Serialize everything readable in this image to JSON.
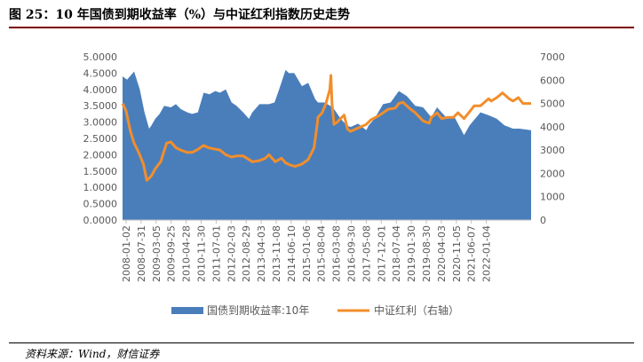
{
  "figure": {
    "title": "图 25：10 年国债到期收益率（%）与中证红利指数历史走势",
    "source": "资料来源：Wind，财信证券"
  },
  "chart_data": {
    "type": "area",
    "title": "",
    "xlabel": "",
    "ylabel": "",
    "x_tick_labels": [
      "2008-01-02",
      "2008-07-31",
      "2009-03-05",
      "2009-09-25",
      "2010-04-28",
      "2010-11-30",
      "2011-07-01",
      "2012-02-03",
      "2012-08-29",
      "2013-04-03",
      "2013-11-08",
      "2014-06-10",
      "2015-01-06",
      "2015-08-04",
      "2016-03-08",
      "2016-09-30",
      "2017-05-08",
      "2017-12-01",
      "2018-07-04",
      "2019-01-30",
      "2019-08-30",
      "2020-04-03",
      "2020-11-05",
      "2021-06-07",
      "2022-01-04"
    ],
    "y_left": {
      "min": 0,
      "max": 5,
      "tick_labels": [
        "0.0000",
        "0.5000",
        "1.0000",
        "1.5000",
        "2.0000",
        "2.5000",
        "3.0000",
        "3.5000",
        "4.0000",
        "4.5000",
        "5.0000"
      ]
    },
    "y_right": {
      "min": 0,
      "max": 7000,
      "tick_labels": [
        "0",
        "1000",
        "2000",
        "3000",
        "4000",
        "5000",
        "6000",
        "7000"
      ]
    },
    "legend_position": "bottom",
    "series": [
      {
        "name": "国债到期收益率:10年",
        "type": "area",
        "axis": "left",
        "color": "#4a7ebb",
        "x": [
          "2008-01-02",
          "2008-03-01",
          "2008-06-01",
          "2008-08-15",
          "2008-10-15",
          "2008-12-15",
          "2009-01-15",
          "2009-03-05",
          "2009-05-01",
          "2009-07-01",
          "2009-09-25",
          "2009-12-01",
          "2010-02-01",
          "2010-04-28",
          "2010-07-01",
          "2010-09-15",
          "2010-11-30",
          "2011-02-15",
          "2011-05-01",
          "2011-07-01",
          "2011-09-15",
          "2011-12-01",
          "2012-02-03",
          "2012-05-01",
          "2012-07-15",
          "2012-08-29",
          "2012-12-01",
          "2013-04-03",
          "2013-06-15",
          "2013-08-15",
          "2013-11-08",
          "2013-12-20",
          "2014-03-01",
          "2014-06-10",
          "2014-09-01",
          "2014-12-01",
          "2015-01-06",
          "2015-04-01",
          "2015-06-15",
          "2015-08-04",
          "2015-11-01",
          "2016-01-15",
          "2016-03-08",
          "2016-06-15",
          "2016-09-30",
          "2016-11-01",
          "2017-01-15",
          "2017-05-08",
          "2017-08-15",
          "2017-11-15",
          "2017-12-01",
          "2018-03-15",
          "2018-07-04",
          "2018-10-15",
          "2019-01-30",
          "2019-04-15",
          "2019-08-30",
          "2019-12-01",
          "2020-04-03",
          "2020-06-15",
          "2020-11-05",
          "2021-03-01",
          "2021-06-07",
          "2021-09-15",
          "2022-01-04",
          "2022-04-01",
          "2022-08-30"
        ],
        "values": [
          4.4,
          4.3,
          4.55,
          4.0,
          3.3,
          2.8,
          2.9,
          3.1,
          3.25,
          3.5,
          3.45,
          3.55,
          3.4,
          3.3,
          3.25,
          3.3,
          3.9,
          3.85,
          3.95,
          3.9,
          4.0,
          3.6,
          3.5,
          3.3,
          3.1,
          3.3,
          3.55,
          3.55,
          3.6,
          4.0,
          4.6,
          4.5,
          4.5,
          4.1,
          4.2,
          3.7,
          3.6,
          3.6,
          3.5,
          3.4,
          3.1,
          2.9,
          2.85,
          2.95,
          2.75,
          2.9,
          3.1,
          3.55,
          3.6,
          3.9,
          3.95,
          3.8,
          3.5,
          3.45,
          3.15,
          3.45,
          3.1,
          3.15,
          2.6,
          2.9,
          3.3,
          3.2,
          3.1,
          2.9,
          2.8,
          2.8,
          2.75
        ]
      },
      {
        "name": "中证红利（右轴）",
        "type": "line",
        "axis": "right",
        "color": "#f28e2b",
        "x": [
          "2008-01-02",
          "2008-02-15",
          "2008-04-15",
          "2008-06-01",
          "2008-08-01",
          "2008-10-01",
          "2008-11-15",
          "2009-01-15",
          "2009-03-05",
          "2009-05-15",
          "2009-08-01",
          "2009-09-25",
          "2009-12-01",
          "2010-02-01",
          "2010-04-28",
          "2010-07-01",
          "2010-09-01",
          "2010-11-30",
          "2011-02-01",
          "2011-04-15",
          "2011-07-01",
          "2011-09-15",
          "2011-12-01",
          "2012-02-03",
          "2012-05-01",
          "2012-08-29",
          "2012-12-01",
          "2013-02-15",
          "2013-04-03",
          "2013-06-25",
          "2013-09-15",
          "2013-11-08",
          "2014-01-15",
          "2014-03-15",
          "2014-06-10",
          "2014-09-01",
          "2014-11-15",
          "2014-12-31",
          "2015-01-06",
          "2015-03-01",
          "2015-04-20",
          "2015-06-10",
          "2015-06-25",
          "2015-07-08",
          "2015-08-04",
          "2015-09-15",
          "2015-12-15",
          "2016-01-28",
          "2016-03-08",
          "2016-06-15",
          "2016-09-30",
          "2016-12-01",
          "2017-03-01",
          "2017-05-08",
          "2017-07-15",
          "2017-10-15",
          "2017-12-01",
          "2018-01-25",
          "2018-04-15",
          "2018-07-04",
          "2018-10-15",
          "2019-01-03",
          "2019-01-30",
          "2019-04-15",
          "2019-06-15",
          "2019-08-30",
          "2019-11-15",
          "2020-01-15",
          "2020-04-03",
          "2020-06-15",
          "2020-08-15",
          "2020-11-05",
          "2021-02-18",
          "2021-03-25",
          "2021-06-07",
          "2021-08-20",
          "2021-11-15",
          "2022-01-04",
          "2022-03-15",
          "2022-05-15",
          "2022-08-30"
        ],
        "values": [
          5000,
          4700,
          3800,
          3300,
          2900,
          2400,
          1700,
          1900,
          2200,
          2500,
          3300,
          3350,
          3100,
          3000,
          2900,
          2900,
          3000,
          3200,
          3100,
          3050,
          3000,
          2800,
          2700,
          2750,
          2750,
          2500,
          2550,
          2650,
          2800,
          2500,
          2650,
          2450,
          2350,
          2300,
          2400,
          2600,
          3100,
          4200,
          4400,
          4600,
          5000,
          5600,
          6200,
          5000,
          4100,
          4200,
          4500,
          3900,
          3800,
          3950,
          4100,
          4300,
          4450,
          4600,
          4750,
          4800,
          5000,
          5050,
          4800,
          4600,
          4250,
          4150,
          4400,
          4600,
          4350,
          4400,
          4400,
          4600,
          4350,
          4650,
          4900,
          4900,
          5200,
          5100,
          5250,
          5450,
          5200,
          5100,
          5250,
          5000,
          5000
        ]
      }
    ]
  }
}
